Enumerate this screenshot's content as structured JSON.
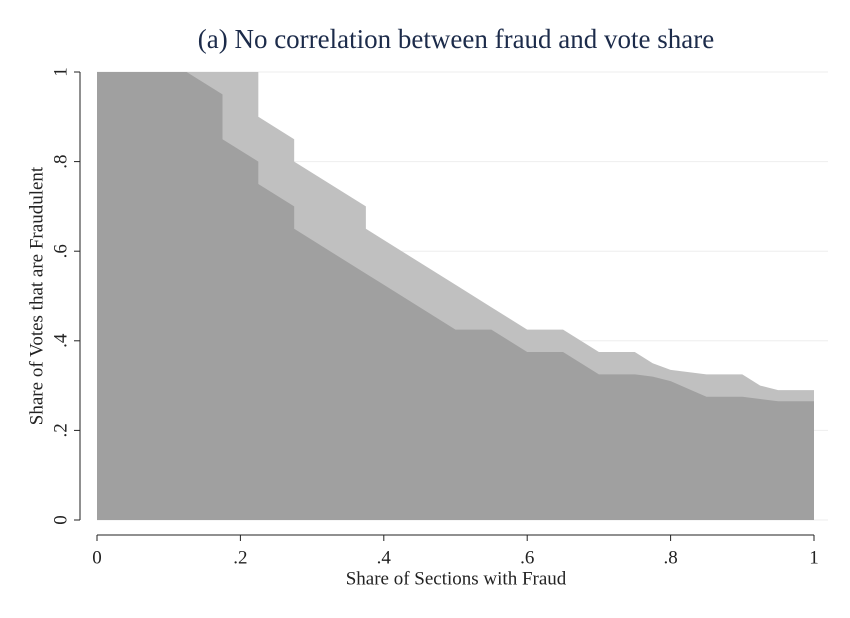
{
  "chart_data": {
    "type": "area",
    "title": "(a) No correlation between fraud and vote share",
    "x_label": "Share of Sections with Fraud",
    "y_label": "Share of Votes that are Fraudulent",
    "x": [
      0,
      0.125,
      0.175,
      0.175,
      0.225,
      0.225,
      0.275,
      0.275,
      0.375,
      0.375,
      0.5,
      0.55,
      0.6,
      0.65,
      0.7,
      0.75,
      0.775,
      0.8,
      0.85,
      0.9,
      0.925,
      0.95,
      1
    ],
    "series": [
      {
        "color": "#c0c0c0",
        "values": [
          1,
          1,
          1,
          1,
          1,
          0.9,
          0.85,
          0.8,
          0.7,
          0.65,
          0.525,
          0.475,
          0.425,
          0.425,
          0.375,
          0.375,
          0.35,
          0.335,
          0.325,
          0.325,
          0.3,
          0.29,
          0.29
        ]
      },
      {
        "color": "#a0a0a0",
        "values": [
          1,
          1,
          0.95,
          0.85,
          0.8,
          0.75,
          0.7,
          0.65,
          0.55,
          0.55,
          0.425,
          0.425,
          0.375,
          0.375,
          0.325,
          0.325,
          0.32,
          0.31,
          0.275,
          0.275,
          0.27,
          0.265,
          0.265
        ]
      }
    ],
    "xlim": [
      0,
      1
    ],
    "ylim": [
      0,
      1
    ],
    "xticks": [
      0,
      {
        "value": 0.2,
        "label": ".2"
      },
      {
        "value": 0.4,
        "label": ".4"
      },
      {
        "value": 0.6,
        "label": ".6"
      },
      {
        "value": 0.8,
        "label": ".8"
      },
      1
    ],
    "yticks": [
      0,
      {
        "value": 0.2,
        "label": ".2"
      },
      {
        "value": 0.4,
        "label": ".4"
      },
      {
        "value": 0.6,
        "label": ".6"
      },
      {
        "value": 0.8,
        "label": ".8"
      },
      1
    ],
    "grid": true
  }
}
